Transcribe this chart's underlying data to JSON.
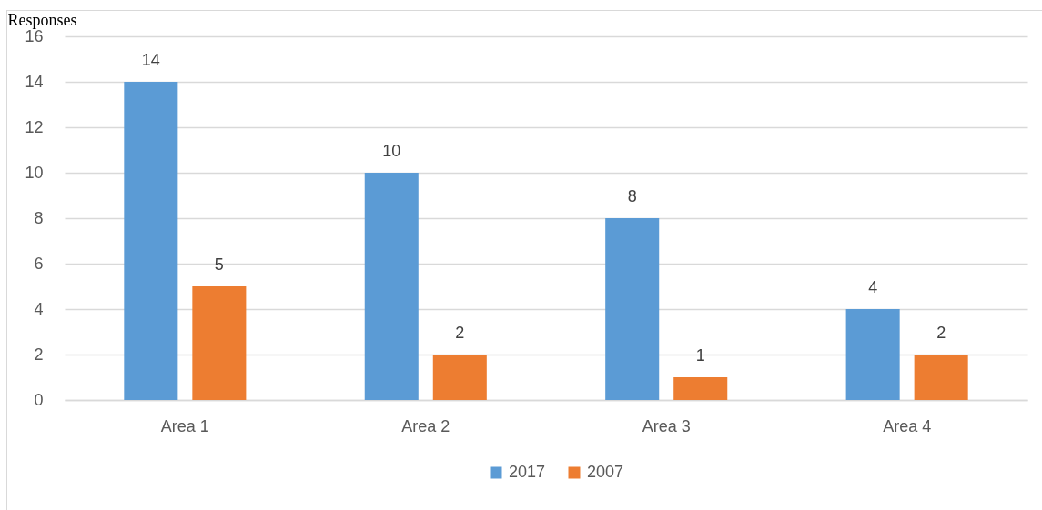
{
  "chart_data": {
    "type": "bar",
    "ylabel": "Responses",
    "categories": [
      "Area 1",
      "Area 2",
      "Area 3",
      "Area 4"
    ],
    "series": [
      {
        "name": "2017",
        "color": "#5b9bd5",
        "values": [
          14,
          10,
          8,
          4
        ]
      },
      {
        "name": "2007",
        "color": "#ed7d31",
        "values": [
          5,
          2,
          1,
          2
        ]
      }
    ],
    "ylim": [
      0,
      16
    ],
    "yticks": [
      0,
      2,
      4,
      6,
      8,
      10,
      12,
      14,
      16
    ],
    "grid": true,
    "legend": "bottom",
    "data_labels": true
  }
}
